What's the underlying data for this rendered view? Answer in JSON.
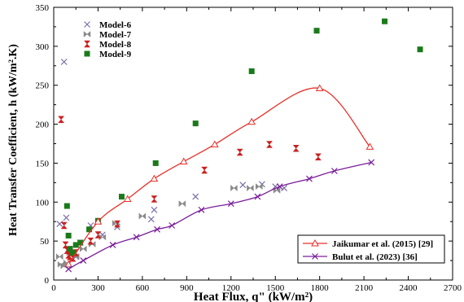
{
  "chart_data": {
    "type": "scatter",
    "xlabel": "Heat Flux, q\" (kW/m²)",
    "ylabel": "Heat Transfer Coefficient, h (kW/m².K)",
    "xlim": [
      0,
      2700
    ],
    "ylim": [
      0,
      350
    ],
    "xticks": [
      0,
      300,
      600,
      900,
      1200,
      1500,
      1800,
      2100,
      2400,
      2700
    ],
    "yticks": [
      0,
      50,
      100,
      150,
      200,
      250,
      300,
      350
    ],
    "grid": false,
    "legend_top": {
      "position": "top-left",
      "entries": [
        "Model-6",
        "Model-7",
        "Model-8",
        "Model-9"
      ]
    },
    "legend_bottom": {
      "position": "bottom-right",
      "entries": [
        "Jaikumar et al. (2015) [29]",
        "Bulut et al. (2023) [36]"
      ]
    },
    "series": [
      {
        "name": "Model-6",
        "kind": "scatter",
        "marker": "x",
        "color": "#7b6fa8",
        "points": [
          [
            40,
            72
          ],
          [
            70,
            280
          ],
          [
            85,
            80
          ],
          [
            100,
            40
          ],
          [
            120,
            35
          ],
          [
            150,
            30
          ],
          [
            180,
            48
          ],
          [
            250,
            70
          ],
          [
            300,
            75
          ],
          [
            330,
            58
          ],
          [
            430,
            68
          ],
          [
            660,
            78
          ],
          [
            680,
            90
          ],
          [
            960,
            107
          ],
          [
            1280,
            122
          ],
          [
            1410,
            123
          ],
          [
            1500,
            120
          ],
          [
            1560,
            118
          ]
        ]
      },
      {
        "name": "Model-7",
        "kind": "scatter",
        "marker": "bowtie",
        "color": "#8a8a8a",
        "points": [
          [
            40,
            30
          ],
          [
            50,
            20
          ],
          [
            70,
            18
          ],
          [
            90,
            22
          ],
          [
            110,
            35
          ],
          [
            150,
            30
          ],
          [
            200,
            40
          ],
          [
            260,
            46
          ],
          [
            330,
            55
          ],
          [
            420,
            73
          ],
          [
            600,
            82
          ],
          [
            870,
            98
          ],
          [
            1220,
            118
          ],
          [
            1330,
            118
          ],
          [
            1390,
            120
          ],
          [
            1510,
            115
          ]
        ]
      },
      {
        "name": "Model-8",
        "kind": "scatter",
        "marker": "hourglass",
        "color": "#cc1f1f",
        "points": [
          [
            50,
            206
          ],
          [
            70,
            70
          ],
          [
            80,
            45
          ],
          [
            90,
            38
          ],
          [
            100,
            32
          ],
          [
            110,
            30
          ],
          [
            130,
            28
          ],
          [
            150,
            35
          ],
          [
            250,
            50
          ],
          [
            300,
            58
          ],
          [
            430,
            72
          ],
          [
            680,
            104
          ],
          [
            1020,
            141
          ],
          [
            1260,
            164
          ],
          [
            1460,
            174
          ],
          [
            1640,
            169
          ],
          [
            1790,
            158
          ]
        ]
      },
      {
        "name": "Model-9",
        "kind": "scatter",
        "marker": "square",
        "color": "#1a7a1a",
        "points": [
          [
            90,
            95
          ],
          [
            100,
            57
          ],
          [
            110,
            40
          ],
          [
            130,
            35
          ],
          [
            150,
            45
          ],
          [
            180,
            48
          ],
          [
            240,
            65
          ],
          [
            300,
            76
          ],
          [
            460,
            107
          ],
          [
            690,
            150
          ],
          [
            960,
            201
          ],
          [
            1340,
            268
          ],
          [
            1780,
            320
          ],
          [
            2240,
            332
          ],
          [
            2480,
            296
          ]
        ]
      },
      {
        "name": "Jaikumar et al. (2015) [29]",
        "kind": "line",
        "marker": "triangle",
        "color": "#e8302a",
        "points": [
          [
            100,
            20
          ],
          [
            300,
            75
          ],
          [
            500,
            104
          ],
          [
            680,
            130
          ],
          [
            880,
            152
          ],
          [
            1090,
            174
          ],
          [
            1340,
            203
          ],
          [
            1800,
            246
          ],
          [
            2140,
            171
          ]
        ]
      },
      {
        "name": "Bulut et al. (2023) [36]",
        "kind": "line",
        "marker": "x",
        "color": "#7a1e9a",
        "points": [
          [
            100,
            14
          ],
          [
            200,
            25
          ],
          [
            400,
            45
          ],
          [
            560,
            55
          ],
          [
            700,
            65
          ],
          [
            800,
            70
          ],
          [
            1000,
            90
          ],
          [
            1200,
            98
          ],
          [
            1380,
            107
          ],
          [
            1530,
            120
          ],
          [
            1730,
            130
          ],
          [
            1900,
            140
          ],
          [
            2150,
            151
          ]
        ]
      }
    ]
  }
}
